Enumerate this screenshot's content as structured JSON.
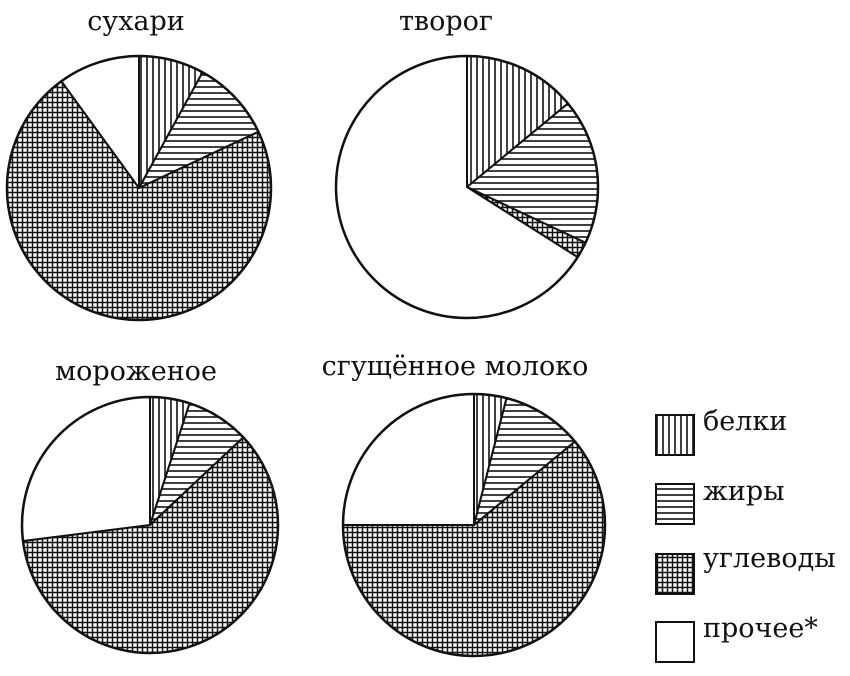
{
  "chart_data": [
    {
      "type": "pie",
      "title": "сухари",
      "categories": [
        "белки",
        "жиры",
        "углеводы",
        "прочее*"
      ],
      "values": [
        8,
        10,
        72,
        10
      ]
    },
    {
      "type": "pie",
      "title": "творог",
      "categories": [
        "белки",
        "жиры",
        "углеводы",
        "прочее*"
      ],
      "values": [
        14,
        18,
        2,
        66
      ]
    },
    {
      "type": "pie",
      "title": "мороженое",
      "categories": [
        "белки",
        "жиры",
        "углеводы",
        "прочее*"
      ],
      "values": [
        5,
        8,
        60,
        27
      ]
    },
    {
      "type": "pie",
      "title": "сгущённое молоко",
      "categories": [
        "белки",
        "жиры",
        "углеводы",
        "прочее*"
      ],
      "values": [
        4,
        10,
        61,
        25
      ]
    }
  ],
  "legend": [
    {
      "label": "белки",
      "pattern": "vertical-lines"
    },
    {
      "label": "жиры",
      "pattern": "horizontal-lines"
    },
    {
      "label": "углеводы",
      "pattern": "crosshatch"
    },
    {
      "label": "прочее*",
      "pattern": "blank"
    }
  ],
  "colors": {
    "ink": "#111111",
    "background": "#ffffff"
  }
}
